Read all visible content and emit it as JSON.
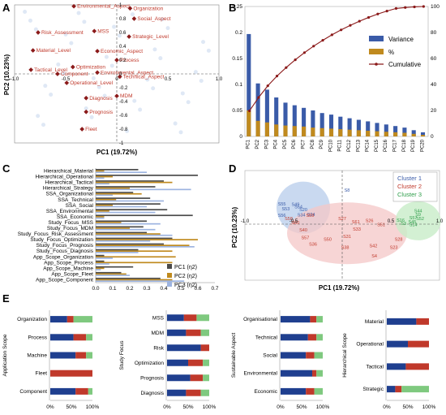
{
  "panel_labels": {
    "a": "A",
    "b": "B",
    "c": "C",
    "d": "D",
    "e": "E"
  },
  "colors": {
    "variance": "#3a5ba8",
    "pct": "#c08a1e",
    "cumulative": "#8b1a1a",
    "pc1": "#4a4a4a",
    "pc2": "#c08a1e",
    "pc3": "#9db4e0",
    "cluster1": "#3a5ba8",
    "cluster2": "#c0392b",
    "cluster3": "#2e9e4a",
    "stack1": "#1f3f8f",
    "stack2": "#c0392b",
    "stack3": "#7fc97f"
  },
  "chart_data": [
    {
      "id": "A",
      "type": "scatter",
      "xlabel": "PC1 (19.72%)",
      "ylabel": "PC2 (10.23%)",
      "xlim": [
        -1,
        1
      ],
      "ylim": [
        -1,
        1
      ],
      "xticks": [
        "-1.0",
        "-0.5",
        "0",
        "0.5",
        "1.0"
      ],
      "yticks": [
        "1",
        "0.8",
        "0.6",
        "0.4",
        "0.2",
        "0",
        "-0.2",
        "-0.4",
        "-0.6",
        "-0.8",
        "-1"
      ],
      "points": [
        {
          "label": "Environmental_Aspect",
          "x": -0.42,
          "y": 0.98
        },
        {
          "label": "Organization",
          "x": 0.13,
          "y": 0.95
        },
        {
          "label": "Social_Aspect",
          "x": 0.17,
          "y": 0.8
        },
        {
          "label": "Risk_Assessment",
          "x": -0.77,
          "y": 0.6
        },
        {
          "label": "MSS",
          "x": -0.22,
          "y": 0.62
        },
        {
          "label": "Strategic_Level",
          "x": 0.12,
          "y": 0.54
        },
        {
          "label": "Material_Level",
          "x": -0.82,
          "y": 0.34
        },
        {
          "label": "Economic_Aspect",
          "x": -0.19,
          "y": 0.33
        },
        {
          "label": "Process",
          "x": 0,
          "y": 0.2
        },
        {
          "label": "Optimization",
          "x": -0.43,
          "y": 0.1
        },
        {
          "label": "Tactical_Level",
          "x": -0.84,
          "y": 0.06
        },
        {
          "label": "Environmental_Aspect",
          "x": -0.19,
          "y": 0.02
        },
        {
          "label": "Technical_Aspect",
          "x": 0.03,
          "y": -0.04
        },
        {
          "label": "Component",
          "x": -0.58,
          "y": 0.0
        },
        {
          "label": "Operational_Level",
          "x": -0.49,
          "y": -0.13
        },
        {
          "label": "Diagnosis",
          "x": -0.3,
          "y": -0.35
        },
        {
          "label": "MDM",
          "x": -0.0,
          "y": -0.32
        },
        {
          "label": "Prognosis",
          "x": -0.3,
          "y": -0.55
        },
        {
          "label": "Fleet",
          "x": -0.34,
          "y": -0.8
        }
      ]
    },
    {
      "id": "B",
      "type": "bar",
      "categories": [
        "PC1",
        "PC2",
        "PC3",
        "PC4",
        "PC5",
        "PC6",
        "PC7",
        "PC8",
        "PC9",
        "PC10",
        "PC11",
        "PC12",
        "PC13",
        "PC14",
        "PC15",
        "PC16",
        "PC17",
        "PC18",
        "PC19",
        "PC20"
      ],
      "series": [
        {
          "name": "Variance",
          "values": [
            0.197,
            0.102,
            0.09,
            0.075,
            0.065,
            0.06,
            0.055,
            0.05,
            0.045,
            0.042,
            0.038,
            0.035,
            0.032,
            0.029,
            0.026,
            0.023,
            0.02,
            0.017,
            0.012,
            0.008
          ]
        },
        {
          "name": "%",
          "values": [
            0.05,
            0.03,
            0.027,
            0.023,
            0.021,
            0.02,
            0.019,
            0.017,
            0.016,
            0.015,
            0.014,
            0.013,
            0.012,
            0.011,
            0.01,
            0.009,
            0.008,
            0.007,
            0.005,
            0.003
          ]
        },
        {
          "name": "Cumulative",
          "values": [
            19.7,
            30,
            39,
            46.5,
            53,
            59,
            64.5,
            69.5,
            74,
            78.2,
            82,
            85.5,
            88.7,
            91.6,
            94.2,
            96.5,
            98.5,
            99.2,
            99.7,
            100
          ]
        }
      ],
      "ylim": [
        0,
        0.25
      ],
      "ylim2": [
        0,
        100
      ],
      "yticks": [
        "0",
        "0.05",
        "0.1",
        "0.15",
        "0.2",
        "0.25"
      ],
      "y2ticks": [
        "0",
        "20",
        "40",
        "60",
        "80",
        "100"
      ]
    },
    {
      "id": "C",
      "type": "bar",
      "categories": [
        "Hierarchical_Material",
        "Hierarchical_Operational",
        "Hierarchical_Tactical",
        "Hierarchical_Strategy",
        "SSA_Organizational",
        "SSA_Technical",
        "SSA_Social",
        "SSA_Environmental",
        "SSA_Economic",
        "Study_Focus_MSS",
        "Study_Focus_MDM",
        "Study_Focus_Risk_Assessment",
        "Study_Focus_Optimization",
        "Study_Focus_Prognosis",
        "Study_Focus_Diagnosis",
        "App_Scope_Organization",
        "App_Scope_Process",
        "App_Scope_Machine",
        "App_Scope_Fleet",
        "App_Scope_Component"
      ],
      "series": [
        {
          "name": "PC1 (η2)",
          "values": [
            0.25,
            0.6,
            0.4,
            0.35,
            0.22,
            0.32,
            0.38,
            0.42,
            0.57,
            0.3,
            0.28,
            0.3,
            0.45,
            0.4,
            0.25,
            0.05,
            0.05,
            0.22,
            0.15,
            0.38
          ]
        },
        {
          "name": "PC2 (η2)",
          "values": [
            0.05,
            0.1,
            0.45,
            0.2,
            0.27,
            0.12,
            0.1,
            0.08,
            0.05,
            0.15,
            0.2,
            0.38,
            0.6,
            0.55,
            0.45,
            0.47,
            0.45,
            0.05,
            0.18,
            0.45
          ]
        },
        {
          "name": "PC3 (η2)",
          "values": [
            0.3,
            0.05,
            0.08,
            0.56,
            0.1,
            0.4,
            0.3,
            0.35,
            0.05,
            0.38,
            0.35,
            0.45,
            0.32,
            0.58,
            0.25,
            0.1,
            0.08,
            0.03,
            0.2,
            0.52
          ]
        }
      ],
      "xlim": [
        0,
        0.7
      ],
      "xticks": [
        "0.0",
        "0.1",
        "0.2",
        "0.3",
        "0.4",
        "0.5",
        "0.6",
        "0.7"
      ]
    },
    {
      "id": "D",
      "type": "scatter",
      "xlabel": "PC1 (19.72%)",
      "ylabel": "PC2 (10.23%)",
      "xlim": [
        -1,
        1
      ],
      "ylim": [
        -1,
        1
      ],
      "xticks": [
        "-1.0",
        "-0.5",
        "0.5",
        "1.0"
      ],
      "legend": [
        "Cluster 1",
        "Cluster 2",
        "Cluster 3"
      ],
      "clusters": [
        {
          "name": "Cluster 1",
          "points": [
            {
              "label": "S8",
              "x": 0.05,
              "y": 0.78
            },
            {
              "label": "S55",
              "x": -0.62,
              "y": 0.45
            },
            {
              "label": "S49",
              "x": -0.48,
              "y": 0.44
            },
            {
              "label": "S54",
              "x": -0.45,
              "y": 0.38
            },
            {
              "label": "S53",
              "x": -0.58,
              "y": 0.33
            },
            {
              "label": "S20",
              "x": -0.4,
              "y": 0.31
            },
            {
              "label": "S24",
              "x": -0.32,
              "y": 0.2
            },
            {
              "label": "S56",
              "x": -0.62,
              "y": 0.18
            },
            {
              "label": "S34",
              "x": -0.42,
              "y": 0.19
            }
          ]
        },
        {
          "name": "Cluster 2",
          "points": [
            {
              "label": "S58",
              "x": -0.55,
              "y": 0.1
            },
            {
              "label": "S59",
              "x": -0.33,
              "y": 0.18
            },
            {
              "label": "S27",
              "x": 0.0,
              "y": 0.1
            },
            {
              "label": "S26",
              "x": 0.28,
              "y": 0.05
            },
            {
              "label": "S61",
              "x": 0.14,
              "y": 0.02
            },
            {
              "label": "S60",
              "x": -0.48,
              "y": 0.0
            },
            {
              "label": "S51",
              "x": 0.4,
              "y": -0.05
            },
            {
              "label": "S40",
              "x": -0.4,
              "y": -0.18
            },
            {
              "label": "S33",
              "x": 0.15,
              "y": -0.16
            },
            {
              "label": "S31",
              "x": 0.05,
              "y": -0.33
            },
            {
              "label": "S28",
              "x": 0.58,
              "y": -0.4
            },
            {
              "label": "S36",
              "x": -0.3,
              "y": -0.52
            },
            {
              "label": "S42",
              "x": 0.32,
              "y": -0.56
            },
            {
              "label": "S50",
              "x": -0.15,
              "y": -0.4
            },
            {
              "label": "S38",
              "x": 0.03,
              "y": -0.6
            },
            {
              "label": "S57",
              "x": -0.38,
              "y": -0.36
            },
            {
              "label": "S23",
              "x": 0.53,
              "y": -0.6
            },
            {
              "label": "S4",
              "x": 0.33,
              "y": -0.8
            }
          ]
        },
        {
          "name": "Cluster 3",
          "points": [
            {
              "label": "S44",
              "x": 0.78,
              "y": 0.28
            },
            {
              "label": "S9",
              "x": 0.78,
              "y": 0.2
            },
            {
              "label": "S57",
              "x": 0.73,
              "y": 0.12
            },
            {
              "label": "S52",
              "x": 0.8,
              "y": 0.1
            },
            {
              "label": "S16",
              "x": 0.6,
              "y": 0.06
            },
            {
              "label": "S45",
              "x": 0.72,
              "y": 0.02
            },
            {
              "label": "S3",
              "x": 0.63,
              "y": -0.02
            },
            {
              "label": "S14",
              "x": 0.73,
              "y": -0.05
            }
          ]
        }
      ]
    },
    {
      "id": "E1",
      "type": "bar",
      "group": "Application Scope",
      "categories": [
        "Organization",
        "Process",
        "Machine",
        "Fleet",
        "Component"
      ],
      "series": [
        {
          "values": [
            0.4,
            0.55,
            0.6,
            0,
            0.6
          ]
        },
        {
          "values": [
            0.15,
            0.3,
            0.25,
            1,
            0.3
          ]
        },
        {
          "values": [
            0.45,
            0.15,
            0.15,
            0,
            0.1
          ]
        }
      ]
    },
    {
      "id": "E2",
      "type": "bar",
      "group": "Study Focus",
      "categories": [
        "MSS",
        "MDM",
        "Risk",
        "Optimization",
        "Prognosis",
        "Diagnosis"
      ],
      "series": [
        {
          "values": [
            0.4,
            0.45,
            0.8,
            0.5,
            0.55,
            0.45
          ]
        },
        {
          "values": [
            0.3,
            0.35,
            0.2,
            0.35,
            0.3,
            0.35
          ]
        },
        {
          "values": [
            0.3,
            0.2,
            0,
            0.15,
            0.15,
            0.2
          ]
        }
      ]
    },
    {
      "id": "E3",
      "type": "bar",
      "group": "Sustainable Aspect",
      "categories": [
        "Organisational",
        "Technical",
        "Social",
        "Environmental",
        "Economic"
      ],
      "series": [
        {
          "values": [
            0.7,
            0.65,
            0.6,
            0.75,
            0.6
          ]
        },
        {
          "values": [
            0.15,
            0.2,
            0.2,
            0.1,
            0.2
          ]
        },
        {
          "values": [
            0.15,
            0.15,
            0.2,
            0.15,
            0.2
          ]
        }
      ]
    },
    {
      "id": "E4",
      "type": "bar",
      "group": "Hierarchical Scope",
      "categories": [
        "Material",
        "Operational",
        "Tactical",
        "Strategic"
      ],
      "series": [
        {
          "values": [
            0.7,
            0.5,
            0.45,
            0.2
          ]
        },
        {
          "values": [
            0.3,
            0.5,
            0.55,
            0.15
          ]
        },
        {
          "values": [
            0,
            0,
            0,
            0.65
          ]
        }
      ]
    }
  ],
  "e_ticks": [
    "0%",
    "50%",
    "100%"
  ]
}
